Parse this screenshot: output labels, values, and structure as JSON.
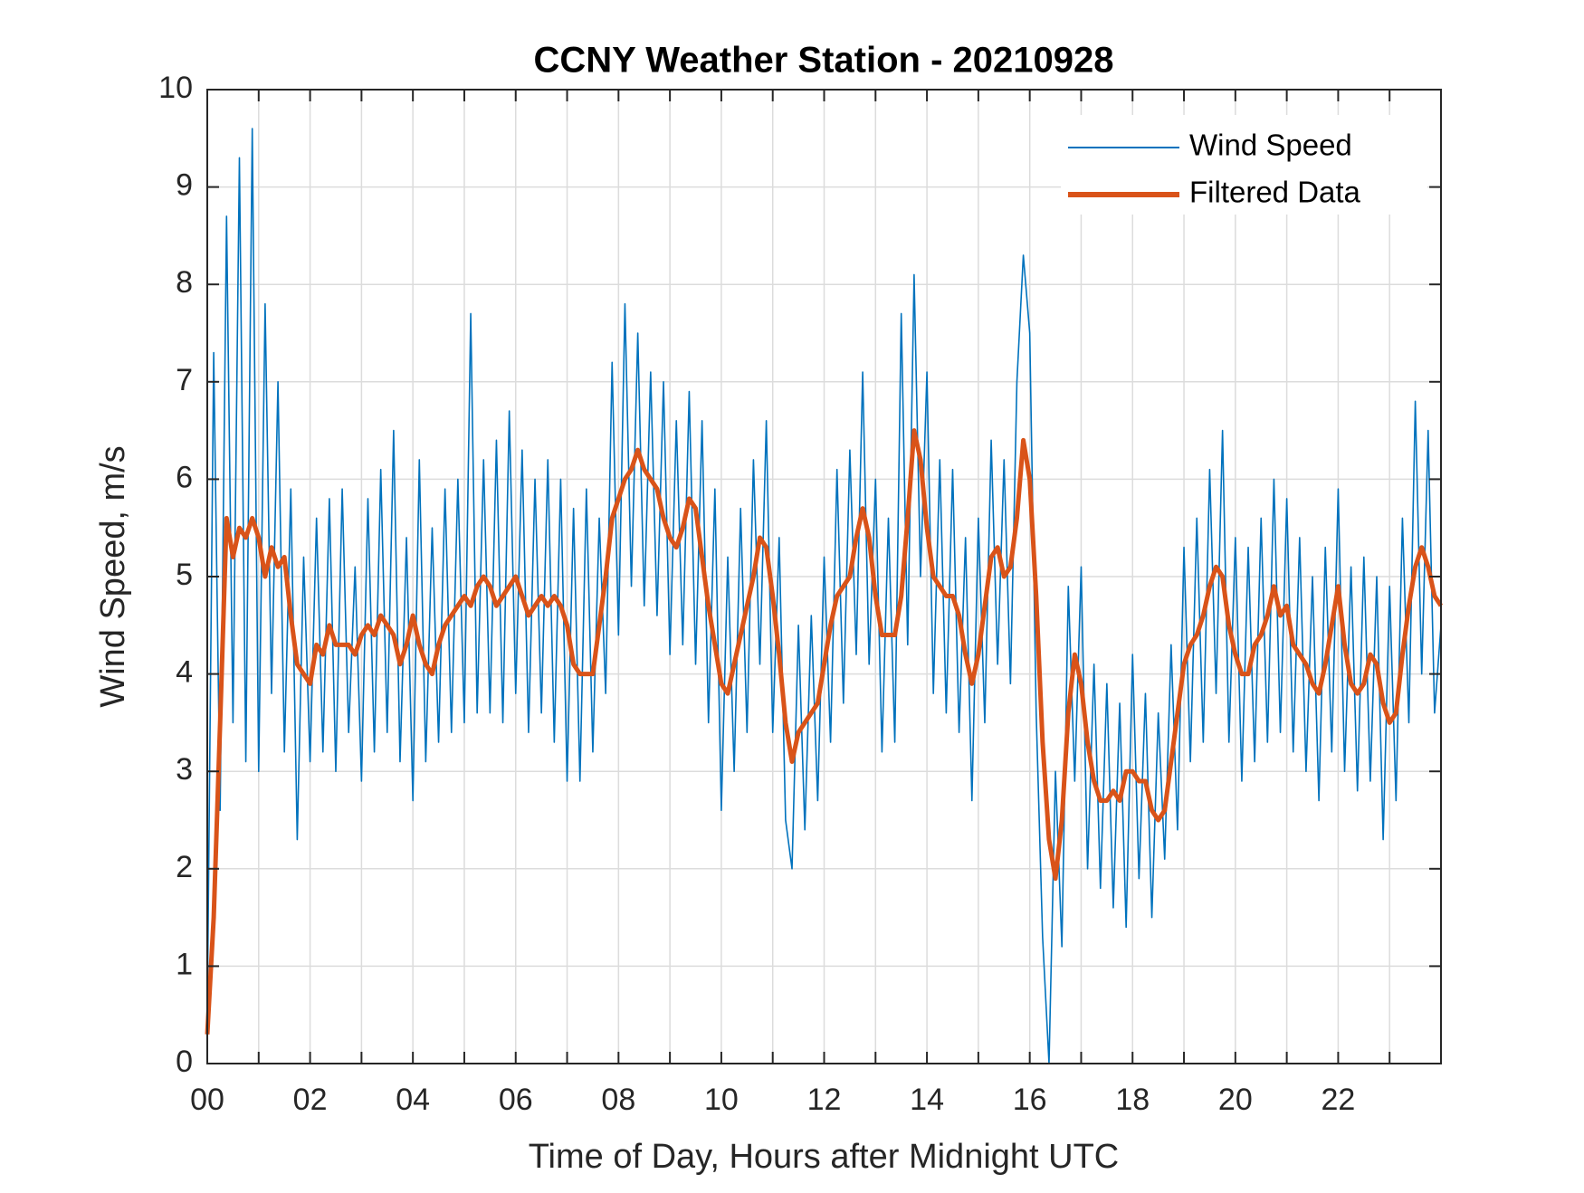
{
  "chart_data": {
    "type": "line",
    "title": "CCNY Weather Station - 20210928",
    "x_label": "Time of Day, Hours after Midnight UTC",
    "y_label": "Wind Speed, m/s",
    "xlim": [
      0,
      24
    ],
    "ylim": [
      0,
      10
    ],
    "xticks": [
      {
        "value": 0,
        "label": "00"
      },
      {
        "value": 2,
        "label": "02"
      },
      {
        "value": 4,
        "label": "04"
      },
      {
        "value": 6,
        "label": "06"
      },
      {
        "value": 8,
        "label": "08"
      },
      10,
      12,
      14,
      16,
      18,
      20,
      22
    ],
    "xminorticks": [
      1,
      3,
      5,
      7,
      9,
      11,
      13,
      15,
      17,
      19,
      21,
      23
    ],
    "yticks": [
      0,
      1,
      2,
      3,
      4,
      5,
      6,
      7,
      8,
      9,
      10
    ],
    "grid": true,
    "legend": "upper right",
    "x": [
      0,
      0.125,
      0.25,
      0.375,
      0.5,
      0.625,
      0.75,
      0.875,
      1,
      1.125,
      1.25,
      1.375,
      1.5,
      1.625,
      1.75,
      1.875,
      2,
      2.125,
      2.25,
      2.375,
      2.5,
      2.625,
      2.75,
      2.875,
      3,
      3.125,
      3.25,
      3.375,
      3.5,
      3.625,
      3.75,
      3.875,
      4,
      4.125,
      4.25,
      4.375,
      4.5,
      4.625,
      4.75,
      4.875,
      5,
      5.125,
      5.25,
      5.375,
      5.5,
      5.625,
      5.75,
      5.875,
      6,
      6.125,
      6.25,
      6.375,
      6.5,
      6.625,
      6.75,
      6.875,
      7,
      7.125,
      7.25,
      7.375,
      7.5,
      7.625,
      7.75,
      7.875,
      8,
      8.125,
      8.25,
      8.375,
      8.5,
      8.625,
      8.75,
      8.875,
      9,
      9.125,
      9.25,
      9.375,
      9.5,
      9.625,
      9.75,
      9.875,
      10,
      10.125,
      10.25,
      10.375,
      10.5,
      10.625,
      10.75,
      10.875,
      11,
      11.125,
      11.25,
      11.375,
      11.5,
      11.625,
      11.75,
      11.875,
      12,
      12.125,
      12.25,
      12.375,
      12.5,
      12.625,
      12.75,
      12.875,
      13,
      13.125,
      13.25,
      13.375,
      13.5,
      13.625,
      13.75,
      13.875,
      14,
      14.125,
      14.25,
      14.375,
      14.5,
      14.625,
      14.75,
      14.875,
      15,
      15.125,
      15.25,
      15.375,
      15.5,
      15.625,
      15.75,
      15.875,
      16,
      16.125,
      16.25,
      16.375,
      16.5,
      16.625,
      16.75,
      16.875,
      17,
      17.125,
      17.25,
      17.375,
      17.5,
      17.625,
      17.75,
      17.875,
      18,
      18.125,
      18.25,
      18.375,
      18.5,
      18.625,
      18.75,
      18.875,
      19,
      19.125,
      19.25,
      19.375,
      19.5,
      19.625,
      19.75,
      19.875,
      20,
      20.125,
      20.25,
      20.375,
      20.5,
      20.625,
      20.75,
      20.875,
      21,
      21.125,
      21.25,
      21.375,
      21.5,
      21.625,
      21.75,
      21.875,
      22,
      22.125,
      22.25,
      22.375,
      22.5,
      22.625,
      22.75,
      22.875,
      23,
      23.125,
      23.25,
      23.375,
      23.5,
      23.625,
      23.75,
      23.875,
      24
    ],
    "series": [
      {
        "name": "Wind Speed",
        "color": "#0072bd",
        "values": [
          0.5,
          7.3,
          2.6,
          8.7,
          3.5,
          9.3,
          3.1,
          9.6,
          3.0,
          7.8,
          3.8,
          7.0,
          3.2,
          5.9,
          2.3,
          5.2,
          3.1,
          5.6,
          3.2,
          5.8,
          3.0,
          5.9,
          3.4,
          5.1,
          2.9,
          5.8,
          3.2,
          6.1,
          3.4,
          6.5,
          3.1,
          5.4,
          2.7,
          6.2,
          3.1,
          5.5,
          3.3,
          5.9,
          3.4,
          6.0,
          3.5,
          7.7,
          3.6,
          6.2,
          3.6,
          6.4,
          3.5,
          6.7,
          3.8,
          6.3,
          3.4,
          6.0,
          3.6,
          6.2,
          3.3,
          6.0,
          2.9,
          5.7,
          2.9,
          5.9,
          3.2,
          5.6,
          3.8,
          7.2,
          4.4,
          7.8,
          4.9,
          7.5,
          4.7,
          7.1,
          4.6,
          7.0,
          4.2,
          6.6,
          4.3,
          6.9,
          4.1,
          6.6,
          3.5,
          5.9,
          2.6,
          5.2,
          3.0,
          5.7,
          3.4,
          6.2,
          4.1,
          6.6,
          3.4,
          5.4,
          2.5,
          2.0,
          4.5,
          2.4,
          4.6,
          2.7,
          5.2,
          3.3,
          6.1,
          3.7,
          6.3,
          4.2,
          7.1,
          4.1,
          6.0,
          3.2,
          5.6,
          3.3,
          7.7,
          4.3,
          8.1,
          5.0,
          7.1,
          3.8,
          6.2,
          3.6,
          6.1,
          3.4,
          5.4,
          2.7,
          5.6,
          3.5,
          6.4,
          4.1,
          6.2,
          3.9,
          7.0,
          8.3,
          7.5,
          3.6,
          1.3,
          0.0,
          3.0,
          1.2,
          4.9,
          2.9,
          5.1,
          2.0,
          4.1,
          1.8,
          3.9,
          1.6,
          3.7,
          1.4,
          4.2,
          1.9,
          3.8,
          1.5,
          3.6,
          2.1,
          4.3,
          2.4,
          5.3,
          3.1,
          5.6,
          3.3,
          6.1,
          3.8,
          6.5,
          3.3,
          5.4,
          2.9,
          5.3,
          3.1,
          5.6,
          3.3,
          6.0,
          3.4,
          5.8,
          3.2,
          5.4,
          3.0,
          5.0,
          2.7,
          5.3,
          3.2,
          5.9,
          3.0,
          5.1,
          2.8,
          5.2,
          2.9,
          5.0,
          2.3,
          4.9,
          2.7,
          5.6,
          3.5,
          6.8,
          4.0,
          6.5,
          3.6,
          4.5
        ]
      },
      {
        "name": "Filtered Data",
        "color": "#d95319",
        "values": [
          0.3,
          1.5,
          3.5,
          5.6,
          5.2,
          5.5,
          5.4,
          5.6,
          5.4,
          5.0,
          5.3,
          5.1,
          5.2,
          4.6,
          4.1,
          4.0,
          3.9,
          4.3,
          4.2,
          4.5,
          4.3,
          4.3,
          4.3,
          4.2,
          4.4,
          4.5,
          4.4,
          4.6,
          4.5,
          4.4,
          4.1,
          4.3,
          4.6,
          4.3,
          4.1,
          4.0,
          4.3,
          4.5,
          4.6,
          4.7,
          4.8,
          4.7,
          4.9,
          5.0,
          4.9,
          4.7,
          4.8,
          4.9,
          5.0,
          4.8,
          4.6,
          4.7,
          4.8,
          4.7,
          4.8,
          4.7,
          4.5,
          4.1,
          4.0,
          4.0,
          4.0,
          4.5,
          5.0,
          5.6,
          5.8,
          6.0,
          6.1,
          6.3,
          6.1,
          6.0,
          5.9,
          5.6,
          5.4,
          5.3,
          5.5,
          5.8,
          5.7,
          5.2,
          4.7,
          4.3,
          3.9,
          3.8,
          4.1,
          4.4,
          4.7,
          5.0,
          5.4,
          5.3,
          4.8,
          4.2,
          3.5,
          3.1,
          3.4,
          3.5,
          3.6,
          3.7,
          4.1,
          4.5,
          4.8,
          4.9,
          5.0,
          5.4,
          5.7,
          5.4,
          4.8,
          4.4,
          4.4,
          4.4,
          4.8,
          5.6,
          6.5,
          6.2,
          5.5,
          5.0,
          4.9,
          4.8,
          4.8,
          4.6,
          4.2,
          3.9,
          4.2,
          4.7,
          5.2,
          5.3,
          5.0,
          5.1,
          5.6,
          6.4,
          6.0,
          4.8,
          3.3,
          2.3,
          1.9,
          2.5,
          3.6,
          4.2,
          3.9,
          3.3,
          2.9,
          2.7,
          2.7,
          2.8,
          2.7,
          3.0,
          3.0,
          2.9,
          2.9,
          2.6,
          2.5,
          2.6,
          3.1,
          3.6,
          4.1,
          4.3,
          4.4,
          4.6,
          4.9,
          5.1,
          5.0,
          4.5,
          4.2,
          4.0,
          4.0,
          4.3,
          4.4,
          4.6,
          4.9,
          4.6,
          4.7,
          4.3,
          4.2,
          4.1,
          3.9,
          3.8,
          4.1,
          4.5,
          4.9,
          4.3,
          3.9,
          3.8,
          3.9,
          4.2,
          4.1,
          3.7,
          3.5,
          3.6,
          4.2,
          4.7,
          5.1,
          5.3,
          5.1,
          4.8,
          4.7
        ]
      }
    ]
  }
}
